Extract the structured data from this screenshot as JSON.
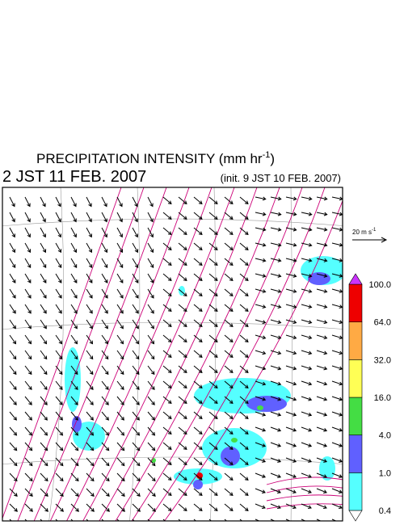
{
  "header": {
    "title": "PRECIPITATION INTENSITY (mm hr",
    "title_exp": "-1",
    "title_end": ")",
    "valid_time": "2 JST 11 FEB. 2007",
    "init_time": "(init. 9 JST 10 FEB. 2007)"
  },
  "vector_legend": {
    "label": "20 m s",
    "label_exp": "-1"
  },
  "colorbar": {
    "levels": [
      {
        "value": 0.4,
        "label": "0.4"
      },
      {
        "value": 1,
        "label": "1.0"
      },
      {
        "value": 4,
        "label": "4.0"
      },
      {
        "value": 16,
        "label": "16.0"
      },
      {
        "value": 32,
        "label": "32.0"
      },
      {
        "value": 64,
        "label": "64.0"
      },
      {
        "value": 100,
        "label": "100.0"
      }
    ],
    "colors": [
      "#ffffff",
      "#55ffff",
      "#6060ff",
      "#44dd44",
      "#ffff55",
      "#ffaa44",
      "#ee0000",
      "#cc33ff"
    ]
  }
}
